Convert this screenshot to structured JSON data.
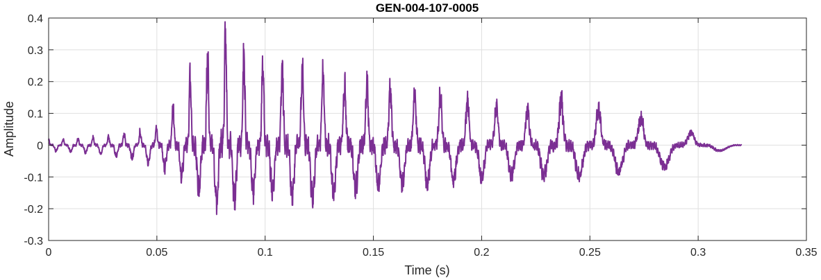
{
  "chart_data": {
    "type": "line",
    "title": "GEN-004-107-0005",
    "xlabel": "Time (s)",
    "ylabel": "Amplitude",
    "xlim": [
      0,
      0.35
    ],
    "ylim": [
      -0.3,
      0.4
    ],
    "x_ticks": [
      "0",
      "0.05",
      "0.1",
      "0.15",
      "0.2",
      "0.25",
      "0.3",
      "0.35"
    ],
    "y_ticks": [
      "-0.3",
      "-0.2",
      "-0.1",
      "0",
      "0.1",
      "0.2",
      "0.3",
      "0.4"
    ],
    "x_tick_values": [
      0,
      0.05,
      0.1,
      0.15,
      0.2,
      0.25,
      0.3,
      0.35
    ],
    "y_tick_values": [
      -0.3,
      -0.2,
      -0.1,
      0,
      0.1,
      0.2,
      0.3,
      0.4
    ],
    "grid": true,
    "line_color": "#7b2f93",
    "signal_duration_s": 0.32,
    "envelope": {
      "t": [
        0,
        0.02,
        0.04,
        0.05,
        0.06,
        0.07,
        0.08,
        0.09,
        0.1,
        0.12,
        0.14,
        0.16,
        0.18,
        0.2,
        0.22,
        0.24,
        0.26,
        0.28,
        0.3,
        0.31,
        0.32
      ],
      "upper": [
        0.02,
        0.03,
        0.05,
        0.07,
        0.2,
        0.31,
        0.4,
        0.32,
        0.3,
        0.31,
        0.25,
        0.22,
        0.19,
        0.16,
        0.14,
        0.18,
        0.12,
        0.1,
        0.04,
        0.02,
        0.01
      ],
      "lower": [
        -0.02,
        -0.03,
        -0.05,
        -0.08,
        -0.11,
        -0.18,
        -0.23,
        -0.2,
        -0.17,
        -0.2,
        -0.17,
        -0.15,
        -0.14,
        -0.12,
        -0.11,
        -0.12,
        -0.1,
        -0.09,
        -0.05,
        -0.02,
        -0.01
      ]
    }
  }
}
